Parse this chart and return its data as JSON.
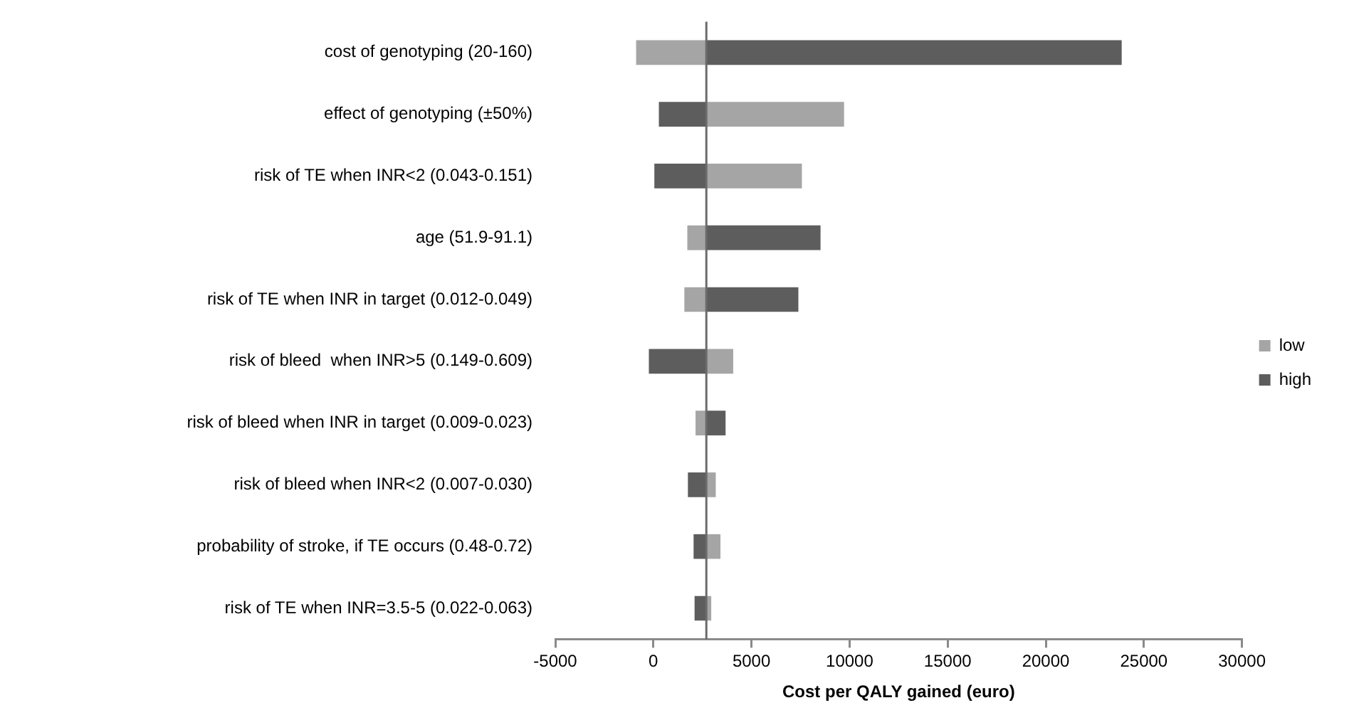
{
  "chart_data": {
    "type": "bar",
    "orientation": "horizontal",
    "xlabel": "Cost per QALY gained (euro)",
    "categories": [
      "cost of genotyping (20-160)",
      "effect of genotyping (±50%)",
      "risk of TE when INR<2 (0.043-0.151)",
      "age (51.9-91.1)",
      "risk of TE when INR in target (0.012-0.049)",
      "risk of bleed  when INR>5 (0.149-0.609)",
      "risk of bleed when INR in target (0.009-0.023)",
      "risk of bleed when INR<2 (0.007-0.030)",
      "probability of stroke, if TE occurs (0.48-0.72)",
      "risk of TE when INR=3.5-5 (0.022-0.063)"
    ],
    "series": [
      {
        "name": "low",
        "color": "#a5a5a5",
        "base": [
          2700,
          2700,
          2700,
          2700,
          2700,
          2700,
          2700,
          2700,
          2700,
          2700
        ],
        "values": [
          -3580,
          7020,
          4870,
          -970,
          -1120,
          1370,
          -550,
          480,
          720,
          250
        ]
      },
      {
        "name": "high",
        "color": "#5d5d5d",
        "base": [
          2700,
          2700,
          2700,
          2700,
          2700,
          2700,
          2700,
          2700,
          2700,
          2700
        ],
        "values": [
          21170,
          -2420,
          -2650,
          5820,
          4690,
          -2930,
          980,
          -940,
          -650,
          -600
        ]
      }
    ],
    "xlim": [
      -5000,
      30000
    ],
    "xticks": [
      -5000,
      0,
      5000,
      10000,
      15000,
      20000,
      25000,
      30000
    ],
    "grid": false,
    "legend": "right",
    "ref_lines": [
      {
        "axis": "x",
        "value": 2700,
        "color": "#6b6b6b"
      }
    ]
  }
}
